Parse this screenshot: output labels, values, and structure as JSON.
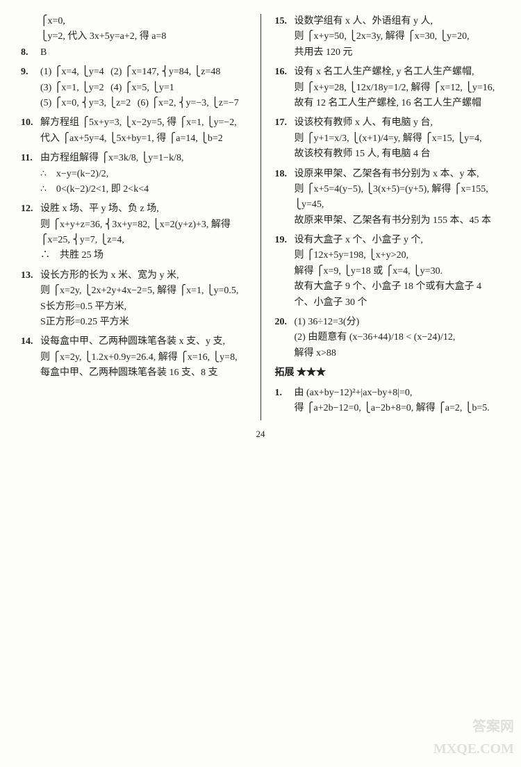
{
  "left": {
    "q7_line1": "⎧x=0,",
    "q7_line2": "⎩y=2, 代入 3x+5y=a+2, 得 a=8",
    "q8_num": "8.",
    "q8_text": "B",
    "q9_num": "9.",
    "q9_1": "(1) ⎧x=4, ⎩y=4",
    "q9_2": "(2) ⎧x=147, ⎨y=84, ⎩z=48",
    "q9_3": "(3) ⎧x=1, ⎩y=2",
    "q9_4": "(4) ⎧x=5, ⎩y=1",
    "q9_5": "(5) ⎧x=0, ⎨y=3, ⎩z=2",
    "q9_6": "(6) ⎧x=2, ⎨y=−3, ⎩z=−7",
    "q10_num": "10.",
    "q10_l1": "解方程组 ⎧5x+y=3, ⎩x−2y=5, 得 ⎧x=1, ⎩y=−2,",
    "q10_l2": "代入 ⎧ax+5y=4, ⎩5x+by=1, 得 ⎧a=14, ⎩b=2",
    "q11_num": "11.",
    "q11_l1": "由方程组解得 ⎧x=3k/8, ⎩y=1−k/8,",
    "q11_l2": "∴　x−y=(k−2)/2,",
    "q11_l3": "∴　0<(k−2)/2<1, 即 2<k<4",
    "q12_num": "12.",
    "q12_l1": "设胜 x 场、平 y 场、负 z 场,",
    "q12_l2": "则 ⎧x+y+z=36, ⎨3x+y=82, ⎩x=2(y+z)+3, 解得 ⎧x=25, ⎨y=7, ⎩z=4,",
    "q12_l3": "∴　共胜 25 场",
    "q13_num": "13.",
    "q13_l1": "设长方形的长为 x 米、宽为 y 米,",
    "q13_l2": "则 ⎧x=2y, ⎩2x+2y+4x−2=5, 解得 ⎧x=1, ⎩y=0.5,",
    "q13_l3": "S长方形=0.5 平方米,",
    "q13_l4": "S正方形=0.25 平方米",
    "q14_num": "14.",
    "q14_l1": "设每盒中甲、乙两种圆珠笔各装 x 支、y 支,",
    "q14_l2": "则 ⎧x=2y, ⎩1.2x+0.9y=26.4, 解得 ⎧x=16, ⎩y=8,",
    "q14_l3": "每盒中甲、乙两种圆珠笔各装 16 支、8 支"
  },
  "right": {
    "q15_num": "15.",
    "q15_l1": "设数学组有 x 人、外语组有 y 人,",
    "q15_l2": "则 ⎧x+y=50, ⎩2x=3y, 解得 ⎧x=30, ⎩y=20,",
    "q15_l3": "共用去 120 元",
    "q16_num": "16.",
    "q16_l1": "设有 x 名工人生产螺栓, y 名工人生产螺帽,",
    "q16_l2": "则 ⎧x+y=28, ⎩12x/18y=1/2, 解得 ⎧x=12, ⎩y=16,",
    "q16_l3": "故有 12 名工人生产螺栓, 16 名工人生产螺帽",
    "q17_num": "17.",
    "q17_l1": "设该校有教师 x 人、有电脑 y 台,",
    "q17_l2": "则 ⎧y+1=x/3, ⎩(x+1)/4=y, 解得 ⎧x=15, ⎩y=4,",
    "q17_l3": "故该校有教师 15 人, 有电脑 4 台",
    "q18_num": "18.",
    "q18_l1": "设原来甲架、乙架各有书分别为 x 本、y 本,",
    "q18_l2": "则 ⎧x+5=4(y−5), ⎩3(x+5)=(y+5), 解得 ⎧x=155, ⎩y=45,",
    "q18_l3": "故原来甲架、乙架各有书分别为 155 本、45 本",
    "q19_num": "19.",
    "q19_l1": "设有大盒子 x 个、小盒子 y 个,",
    "q19_l2": "则 ⎧12x+5y=198, ⎩x+y>20,",
    "q19_l3": "解得 ⎧x=9, ⎩y=18 或 ⎧x=4, ⎩y=30.",
    "q19_l4": "故有大盒子 9 个、小盒子 18 个或有大盒子 4 个、小盒子 30 个",
    "q20_num": "20.",
    "q20_l1": "(1) 36÷12=3(分)",
    "q20_l2": "(2) 由题意有 (x−36+44)/18 < (x−24)/12,",
    "q20_l3": "解得 x>88",
    "ext_title": "拓展 ★★★",
    "e1_num": "1.",
    "e1_l1": "由 (ax+by−12)²+|ax−by+8|=0,",
    "e1_l2": "得 ⎧a+2b−12=0, ⎩a−2b+8=0, 解得 ⎧a=2, ⎩b=5."
  },
  "pagenum": "24",
  "watermark_l1": "答案网",
  "watermark_l2": "MXQE.COM"
}
